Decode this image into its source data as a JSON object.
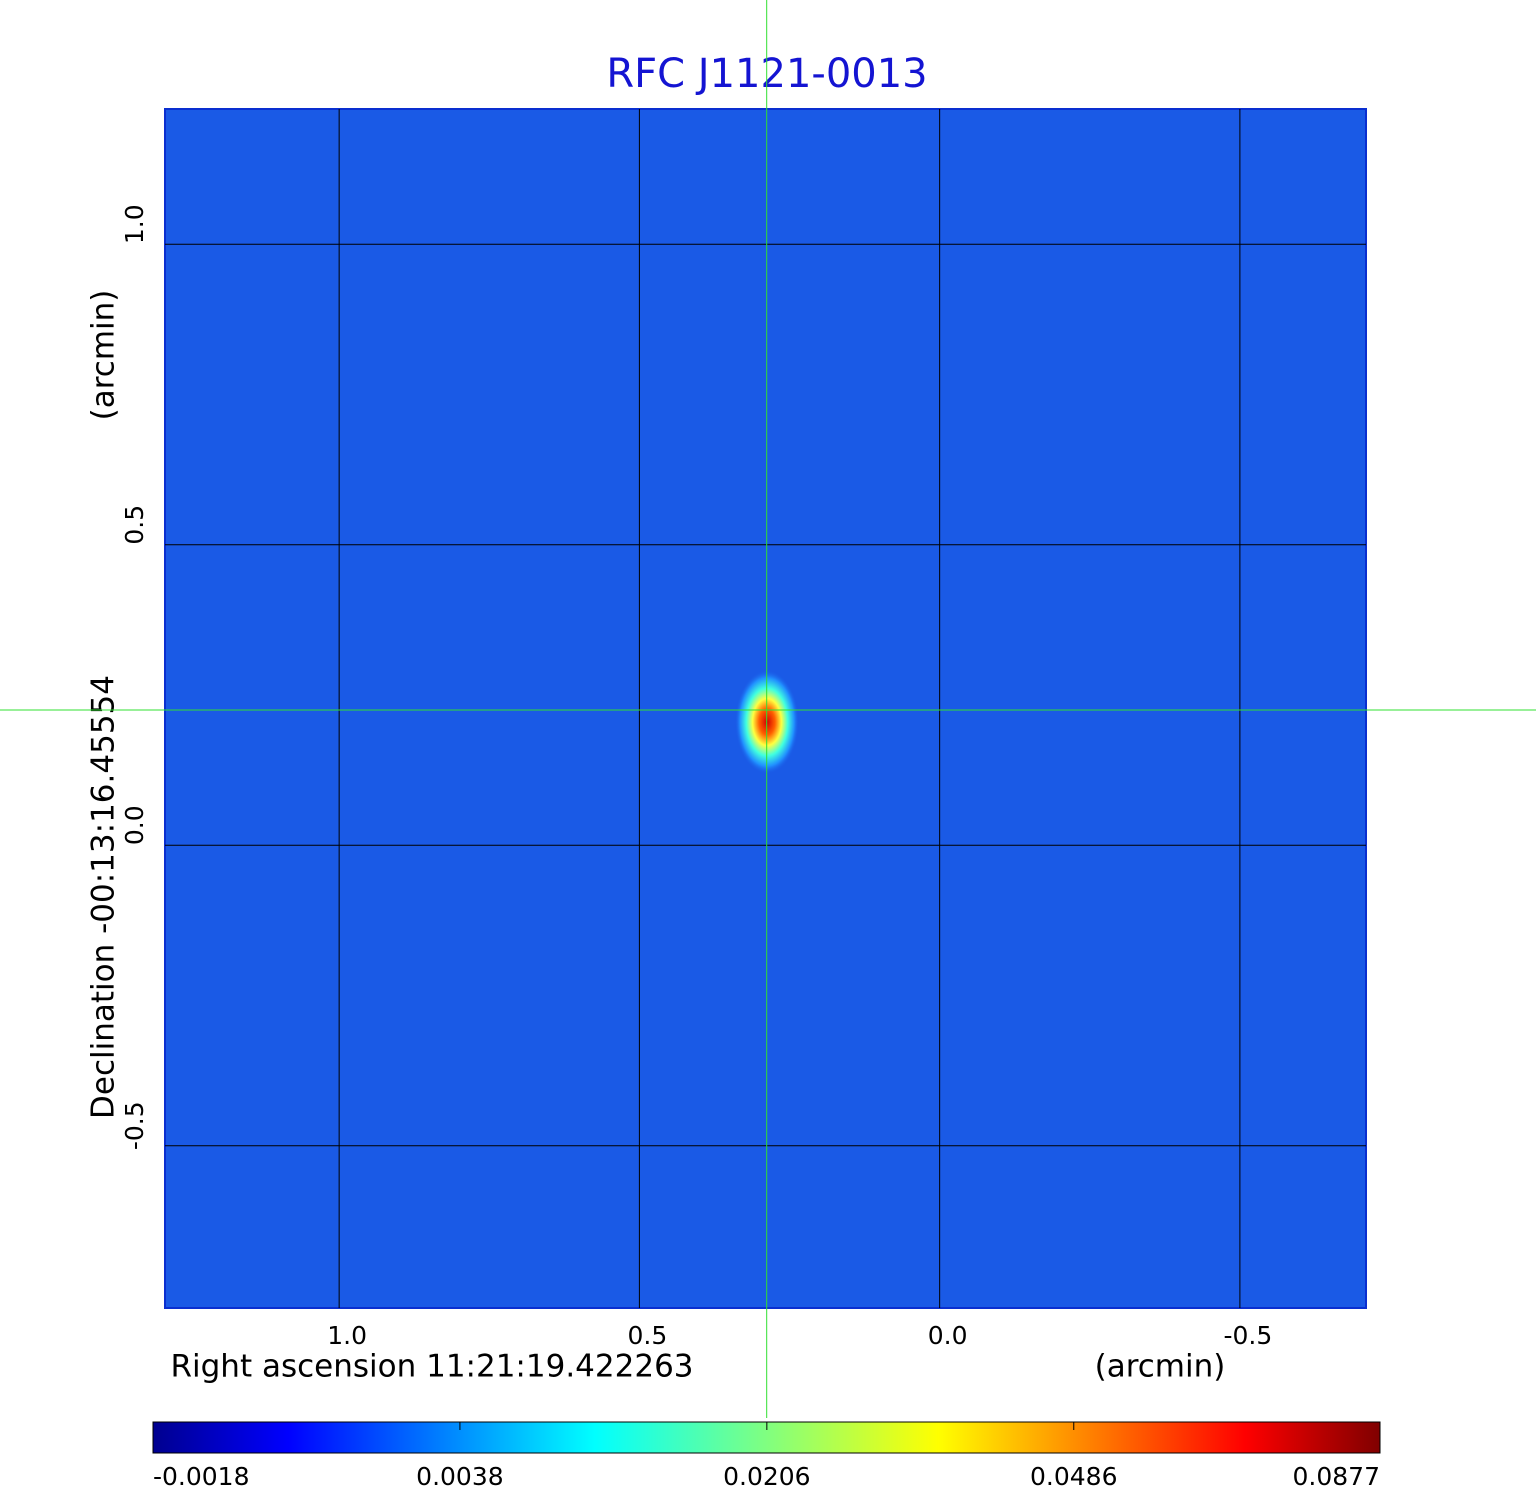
{
  "chart_data": {
    "type": "image",
    "title": "RFC J1121-0013",
    "x_label": "Right ascension  11:21:19.422263",
    "x_unit": "(arcmin)",
    "y_label": "Declination  -00:13:16.45554",
    "y_unit": "(arcmin)",
    "xlim": [
      1.29,
      -0.71
    ],
    "ylim": [
      -0.77,
      1.225
    ],
    "xticks": [
      {
        "value": 1,
        "label": "1.0"
      },
      0.5,
      {
        "value": 0,
        "label": "0.0"
      },
      -0.5
    ],
    "yticks": [
      {
        "value": 1,
        "label": "1.0"
      },
      0.5,
      {
        "value": 0,
        "label": "0.0"
      },
      -0.5
    ],
    "grid": true,
    "crosshair": {
      "x": 0.288,
      "y": 0.225
    },
    "colorbar_scale": "sqrt",
    "clim": [
      -0.0018,
      0.0877
    ],
    "colorbar_ticks": [
      -0.0018,
      0.0038,
      0.0206,
      0.0486,
      0.0877
    ]
  }
}
